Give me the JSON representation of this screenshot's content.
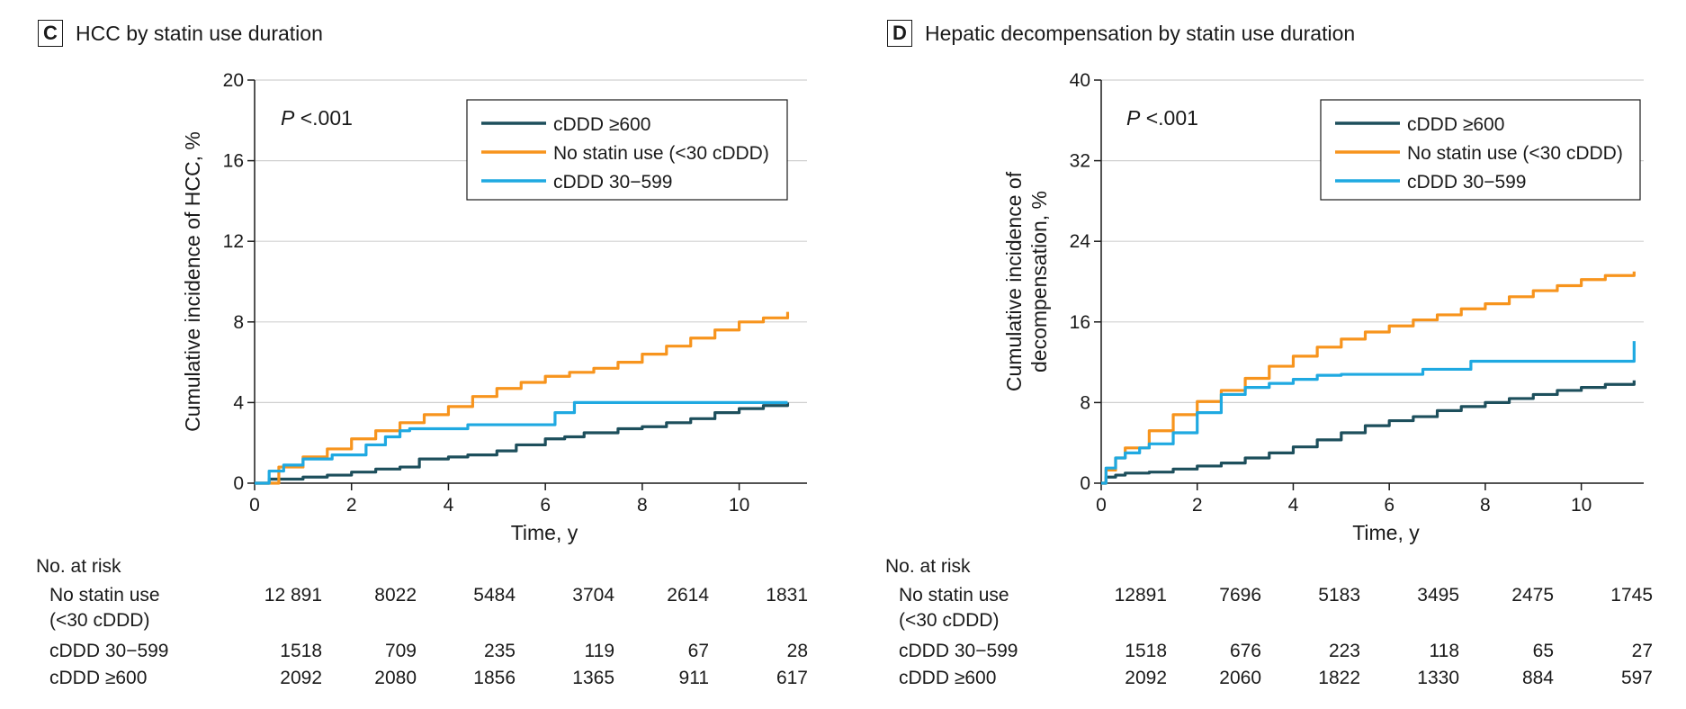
{
  "colors": {
    "cddd600": "#1d4f5c",
    "nostatin": "#f7941d",
    "cddd30": "#1fa9e1",
    "grid": "#d0d0d0",
    "axis": "#1a1a1a"
  },
  "panels": [
    {
      "letter": "C",
      "title": "HCC by statin use duration",
      "pvalue_italic": "P",
      "pvalue_rest": "<.001",
      "legend": [
        "cDDD ≥600",
        "No statin use (<30 cDDD)",
        "cDDD 30−599"
      ],
      "risk_header": "No. at risk",
      "risk_rows": [
        {
          "label1": "No statin use",
          "label2": "(<30 cDDD)",
          "values": [
            "12 891",
            "8022",
            "5484",
            "3704",
            "2614",
            "1831"
          ]
        },
        {
          "label1": "cDDD 30−599",
          "label2": "",
          "values": [
            "1518",
            "709",
            "235",
            "119",
            "67",
            "28"
          ]
        },
        {
          "label1": "cDDD ≥600",
          "label2": "",
          "values": [
            "2092",
            "2080",
            "1856",
            "1365",
            "911",
            "617"
          ]
        }
      ]
    },
    {
      "letter": "D",
      "title": "Hepatic decompensation by statin use duration",
      "pvalue_italic": "P",
      "pvalue_rest": "<.001",
      "legend": [
        "cDDD ≥600",
        "No statin use (<30 cDDD)",
        "cDDD 30−599"
      ],
      "risk_header": "No. at risk",
      "risk_rows": [
        {
          "label1": "No statin use",
          "label2": "(<30 cDDD)",
          "values": [
            "12891",
            "7696",
            "5183",
            "3495",
            "2475",
            "1745"
          ]
        },
        {
          "label1": "cDDD 30−599",
          "label2": "",
          "values": [
            "1518",
            "676",
            "223",
            "118",
            "65",
            "27"
          ]
        },
        {
          "label1": "cDDD ≥600",
          "label2": "",
          "values": [
            "2092",
            "2060",
            "1822",
            "1330",
            "884",
            "597"
          ]
        }
      ]
    }
  ],
  "chart_data": [
    {
      "type": "line",
      "title": "HCC by statin use duration",
      "xlabel": "Time, y",
      "ylabel": "Cumulative incidence of HCC, %",
      "xlim": [
        0,
        11.4
      ],
      "ylim": [
        0,
        20
      ],
      "xticks": [
        0,
        2,
        4,
        6,
        8,
        10
      ],
      "yticks": [
        0,
        4,
        8,
        12,
        16,
        20
      ],
      "grid": "horizontal",
      "legend_position": "top-right",
      "series": [
        {
          "name": "cDDD ≥600",
          "color_key": "cddd600",
          "x": [
            0,
            0.3,
            1,
            1.5,
            2,
            2.5,
            3,
            3.4,
            4,
            4.4,
            5,
            5.4,
            6,
            6.4,
            6.8,
            7.5,
            8,
            8.5,
            9,
            9.5,
            10,
            10.5,
            11
          ],
          "y": [
            0,
            0.2,
            0.3,
            0.4,
            0.55,
            0.7,
            0.8,
            1.2,
            1.3,
            1.4,
            1.6,
            1.9,
            2.2,
            2.3,
            2.5,
            2.7,
            2.8,
            3.0,
            3.2,
            3.5,
            3.7,
            3.85,
            4.0
          ]
        },
        {
          "name": "No statin use (<30 cDDD)",
          "color_key": "nostatin",
          "x": [
            0,
            0.5,
            1,
            1.5,
            2,
            2.5,
            3,
            3.5,
            4,
            4.5,
            5,
            5.5,
            6,
            6.5,
            7,
            7.5,
            8,
            8.5,
            9,
            9.5,
            10,
            10.5,
            11
          ],
          "y": [
            0,
            0.8,
            1.3,
            1.7,
            2.2,
            2.6,
            3.0,
            3.4,
            3.8,
            4.3,
            4.7,
            5.0,
            5.3,
            5.5,
            5.7,
            6.0,
            6.4,
            6.8,
            7.2,
            7.6,
            8.0,
            8.2,
            8.5
          ]
        },
        {
          "name": "cDDD 30−599",
          "color_key": "cddd30",
          "x": [
            0,
            0.3,
            0.6,
            1.0,
            1.6,
            2.3,
            2.7,
            3.0,
            3.2,
            4.4,
            6.2,
            6.6,
            11
          ],
          "y": [
            0,
            0.6,
            0.9,
            1.2,
            1.4,
            1.9,
            2.3,
            2.6,
            2.7,
            2.9,
            3.5,
            4.0,
            4.0
          ]
        }
      ]
    },
    {
      "type": "line",
      "title": "Hepatic decompensation by statin use duration",
      "xlabel": "Time, y",
      "ylabel": "Cumulative incidence of decompensation, %",
      "xlim": [
        0,
        11.3
      ],
      "ylim": [
        0,
        40
      ],
      "xticks": [
        0,
        2,
        4,
        6,
        8,
        10
      ],
      "yticks": [
        0,
        8,
        16,
        24,
        32,
        40
      ],
      "grid": "horizontal",
      "legend_position": "top-right",
      "series": [
        {
          "name": "cDDD ≥600",
          "color_key": "cddd600",
          "x": [
            0,
            0.1,
            0.3,
            0.5,
            1,
            1.5,
            2,
            2.5,
            3,
            3.5,
            4,
            4.5,
            5,
            5.5,
            6,
            6.5,
            7,
            7.5,
            8,
            8.5,
            9,
            9.5,
            10,
            10.5,
            11.1
          ],
          "y": [
            0,
            0.6,
            0.8,
            1.0,
            1.1,
            1.4,
            1.7,
            2.0,
            2.5,
            3.0,
            3.6,
            4.3,
            5.0,
            5.7,
            6.2,
            6.6,
            7.2,
            7.6,
            8.0,
            8.4,
            8.8,
            9.2,
            9.5,
            9.8,
            10.2
          ]
        },
        {
          "name": "No statin use (<30 cDDD)",
          "color_key": "nostatin",
          "x": [
            0,
            0.1,
            0.3,
            0.5,
            1,
            1.5,
            2,
            2.5,
            3,
            3.5,
            4,
            4.5,
            5,
            5.5,
            6,
            6.5,
            7,
            7.5,
            8,
            8.5,
            9,
            9.5,
            10,
            10.5,
            11.1
          ],
          "y": [
            0,
            1.3,
            2.5,
            3.5,
            5.2,
            6.8,
            8.1,
            9.2,
            10.4,
            11.6,
            12.6,
            13.5,
            14.3,
            15.0,
            15.6,
            16.2,
            16.7,
            17.3,
            17.8,
            18.5,
            19.1,
            19.6,
            20.2,
            20.6,
            21.0
          ]
        },
        {
          "name": "cDDD 30−599",
          "color_key": "cddd30",
          "x": [
            0,
            0.1,
            0.3,
            0.5,
            0.8,
            1,
            1.5,
            2,
            2.5,
            3,
            3.5,
            4,
            4.5,
            5,
            6.7,
            7.7,
            11.05,
            11.1
          ],
          "y": [
            0,
            1.5,
            2.5,
            3.0,
            3.5,
            3.9,
            5.0,
            7.0,
            8.8,
            9.5,
            9.9,
            10.3,
            10.7,
            10.8,
            11.3,
            12.1,
            12.1,
            14.1
          ]
        }
      ]
    }
  ]
}
